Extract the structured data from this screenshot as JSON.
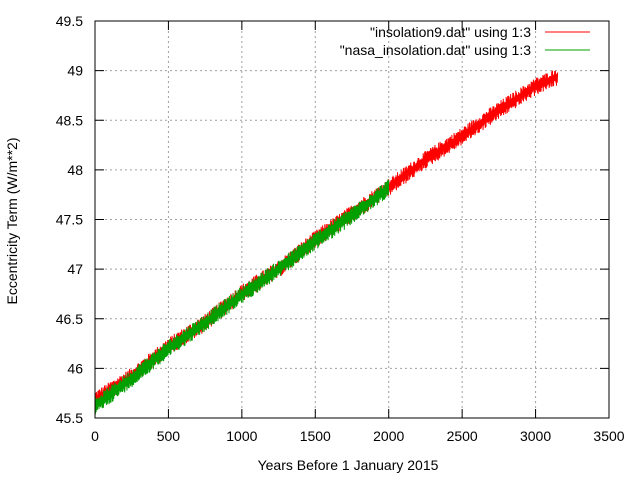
{
  "chart_data": {
    "type": "line",
    "title": "",
    "xlabel": "Years Before 1 January 2015",
    "ylabel": "Eccentricity Term (W/m**2)",
    "xlim": [
      0,
      3500
    ],
    "ylim": [
      45.5,
      49.5
    ],
    "xticks": [
      0,
      500,
      1000,
      1500,
      2000,
      2500,
      3000,
      3500
    ],
    "xtick_labels": [
      "0",
      "500",
      "1000",
      "1500",
      "2000",
      "2500",
      "3000",
      "3500"
    ],
    "yticks": [
      45.5,
      46,
      46.5,
      47,
      47.5,
      48,
      48.5,
      49,
      49.5
    ],
    "ytick_labels": [
      "45.5",
      "46",
      "46.5",
      "47",
      "47.5",
      "48",
      "48.5",
      "49",
      "49.5"
    ],
    "grid": true,
    "legend_position": "top-right",
    "series": [
      {
        "name": "\"insolation9.dat\" using 1:3",
        "color": "#ff0000",
        "x": [
          0,
          250,
          500,
          750,
          1000,
          1250,
          1500,
          1750,
          2000,
          2250,
          2500,
          2750,
          3000,
          3150
        ],
        "y": [
          45.68,
          45.92,
          46.22,
          46.46,
          46.76,
          47.0,
          47.3,
          47.56,
          47.82,
          48.1,
          48.34,
          48.6,
          48.84,
          48.94
        ]
      },
      {
        "name": "\"nasa_insolation.dat\" using 1:3",
        "color": "#00a000",
        "x": [
          0,
          250,
          500,
          750,
          1000,
          1250,
          1500,
          1750,
          2000
        ],
        "y": [
          45.62,
          45.9,
          46.2,
          46.46,
          46.74,
          47.0,
          47.28,
          47.54,
          47.82
        ]
      }
    ]
  }
}
